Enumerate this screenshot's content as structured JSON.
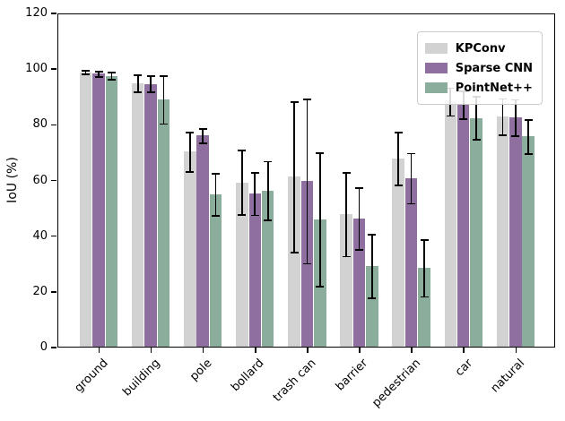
{
  "chart_data": {
    "type": "bar",
    "title": "",
    "xlabel": "",
    "ylabel": "IoU (%)",
    "ylim": [
      0,
      120
    ],
    "yticks": [
      0,
      20,
      40,
      60,
      80,
      100,
      120
    ],
    "grid": false,
    "legend_position": "upper right",
    "error_bar_color": "#000000",
    "categories": [
      "ground",
      "building",
      "pole",
      "bollard",
      "trash can",
      "barrier",
      "pedestrian",
      "car",
      "natural"
    ],
    "series": [
      {
        "name": "KPConv",
        "color": "#d2d2d2",
        "values": [
          98.6,
          94.6,
          70.0,
          59.0,
          61.0,
          47.5,
          67.5,
          88.0,
          82.6
        ],
        "errors": [
          0.7,
          3.0,
          7.0,
          11.5,
          27.0,
          15.0,
          9.5,
          5.0,
          6.5
        ]
      },
      {
        "name": "Sparse CNN",
        "color": "#8e6fa0",
        "values": [
          98.0,
          94.4,
          75.8,
          55.0,
          59.4,
          46.0,
          60.5,
          86.9,
          82.3
        ],
        "errors": [
          1.0,
          3.0,
          2.5,
          7.7,
          29.5,
          11.0,
          9.0,
          5.0,
          6.5
        ]
      },
      {
        "name": "PointNet++",
        "color": "#8bad9c",
        "values": [
          97.3,
          88.7,
          54.7,
          56.0,
          45.7,
          29.0,
          28.2,
          82.1,
          75.5
        ],
        "errors": [
          1.2,
          8.6,
          7.5,
          10.6,
          24.0,
          11.4,
          10.2,
          7.7,
          6.1
        ]
      }
    ]
  }
}
